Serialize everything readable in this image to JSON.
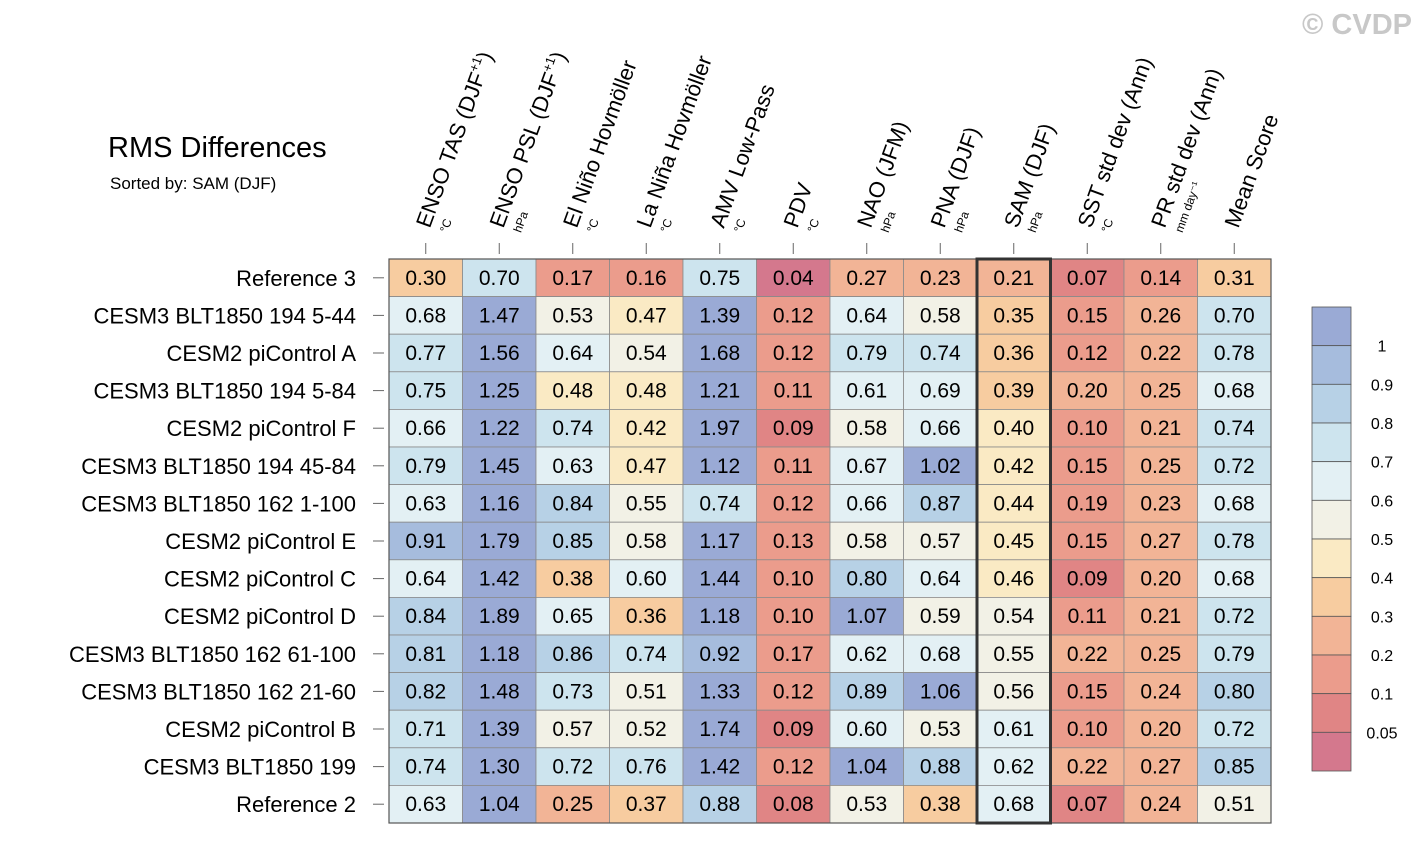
{
  "watermark": "© CVDP",
  "chart_data": {
    "type": "heatmap",
    "title": "RMS Differences",
    "subtitle": "Sorted by: SAM (DJF)",
    "highlight_column": "SAM (DJF)",
    "columns": [
      {
        "label": "ENSO TAS (DJF",
        "sup": "+1",
        "close": ")",
        "unit": "°C"
      },
      {
        "label": "ENSO PSL (DJF",
        "sup": "+1",
        "close": ")",
        "unit": "hPa"
      },
      {
        "label": "El Niño Hovmöller",
        "sup": "",
        "close": "",
        "unit": "°C"
      },
      {
        "label": "La Niña Hovmöller",
        "sup": "",
        "close": "",
        "unit": "°C"
      },
      {
        "label": "AMV Low-Pass",
        "sup": "",
        "close": "",
        "unit": "°C"
      },
      {
        "label": "PDV",
        "sup": "",
        "close": "",
        "unit": "°C"
      },
      {
        "label": "NAO (JFM)",
        "sup": "",
        "close": "",
        "unit": "hPa"
      },
      {
        "label": "PNA (DJF)",
        "sup": "",
        "close": "",
        "unit": "hPa"
      },
      {
        "label": "SAM (DJF)",
        "sup": "",
        "close": "",
        "unit": "hPa"
      },
      {
        "label": "SST std dev (Ann)",
        "sup": "",
        "close": "",
        "unit": "°C"
      },
      {
        "label": "PR std dev (Ann)",
        "sup": "",
        "close": "",
        "unit": "mm day⁻¹"
      },
      {
        "label": "Mean Score",
        "sup": "",
        "close": "",
        "unit": ""
      }
    ],
    "rows": [
      {
        "name": "Reference 3",
        "values": [
          0.3,
          0.7,
          0.17,
          0.16,
          0.75,
          0.04,
          0.27,
          0.23,
          0.21,
          0.07,
          0.14,
          0.31
        ]
      },
      {
        "name": "CESM3 BLT1850 194 5-44",
        "values": [
          0.68,
          1.47,
          0.53,
          0.47,
          1.39,
          0.12,
          0.64,
          0.58,
          0.35,
          0.15,
          0.26,
          0.7
        ]
      },
      {
        "name": "CESM2 piControl A",
        "values": [
          0.77,
          1.56,
          0.64,
          0.54,
          1.68,
          0.12,
          0.79,
          0.74,
          0.36,
          0.12,
          0.22,
          0.78
        ]
      },
      {
        "name": "CESM3 BLT1850 194 5-84",
        "values": [
          0.75,
          1.25,
          0.48,
          0.48,
          1.21,
          0.11,
          0.61,
          0.69,
          0.39,
          0.2,
          0.25,
          0.68
        ]
      },
      {
        "name": "CESM2 piControl F",
        "values": [
          0.66,
          1.22,
          0.74,
          0.42,
          1.97,
          0.09,
          0.58,
          0.66,
          0.4,
          0.1,
          0.21,
          0.74
        ]
      },
      {
        "name": "CESM3 BLT1850 194 45-84",
        "values": [
          0.79,
          1.45,
          0.63,
          0.47,
          1.12,
          0.11,
          0.67,
          1.02,
          0.42,
          0.15,
          0.25,
          0.72
        ]
      },
      {
        "name": "CESM3 BLT1850 162 1-100",
        "values": [
          0.63,
          1.16,
          0.84,
          0.55,
          0.74,
          0.12,
          0.66,
          0.87,
          0.44,
          0.19,
          0.23,
          0.68
        ]
      },
      {
        "name": "CESM2 piControl E",
        "values": [
          0.91,
          1.79,
          0.85,
          0.58,
          1.17,
          0.13,
          0.58,
          0.57,
          0.45,
          0.15,
          0.27,
          0.78
        ]
      },
      {
        "name": "CESM2 piControl C",
        "values": [
          0.64,
          1.42,
          0.38,
          0.6,
          1.44,
          0.1,
          0.8,
          0.64,
          0.46,
          0.09,
          0.2,
          0.68
        ]
      },
      {
        "name": "CESM2 piControl D",
        "values": [
          0.84,
          1.89,
          0.65,
          0.36,
          1.18,
          0.1,
          1.07,
          0.59,
          0.54,
          0.11,
          0.21,
          0.72
        ]
      },
      {
        "name": "CESM3 BLT1850 162 61-100",
        "values": [
          0.81,
          1.18,
          0.86,
          0.74,
          0.92,
          0.17,
          0.62,
          0.68,
          0.55,
          0.22,
          0.25,
          0.79
        ]
      },
      {
        "name": "CESM3 BLT1850 162 21-60",
        "values": [
          0.82,
          1.48,
          0.73,
          0.51,
          1.33,
          0.12,
          0.89,
          1.06,
          0.56,
          0.15,
          0.24,
          0.8
        ]
      },
      {
        "name": "CESM2 piControl B",
        "values": [
          0.71,
          1.39,
          0.57,
          0.52,
          1.74,
          0.09,
          0.6,
          0.53,
          0.61,
          0.1,
          0.2,
          0.72
        ]
      },
      {
        "name": "CESM3 BLT1850 199",
        "values": [
          0.74,
          1.3,
          0.72,
          0.76,
          1.42,
          0.12,
          1.04,
          0.88,
          0.62,
          0.22,
          0.27,
          0.85
        ]
      },
      {
        "name": "Reference 2",
        "values": [
          0.63,
          1.04,
          0.25,
          0.37,
          0.88,
          0.08,
          0.53,
          0.38,
          0.68,
          0.07,
          0.24,
          0.51
        ]
      }
    ],
    "colorbar": {
      "levels": [
        0.05,
        0.1,
        0.2,
        0.3,
        0.4,
        0.5,
        0.6,
        0.7,
        0.8,
        0.9,
        1
      ],
      "tick_labels": [
        "0.05",
        "0.1",
        "0.2",
        "0.3",
        "0.4",
        "0.5",
        "0.6",
        "0.7",
        "0.8",
        "0.9",
        "1"
      ],
      "colors": [
        "#d4788d",
        "#e08585",
        "#eb9c8c",
        "#f2b496",
        "#f7cca0",
        "#faeac4",
        "#f2f1e6",
        "#e3f0f4",
        "#cde4ee",
        "#b7d1e6",
        "#a6bcdd",
        "#9aaad5"
      ]
    }
  }
}
